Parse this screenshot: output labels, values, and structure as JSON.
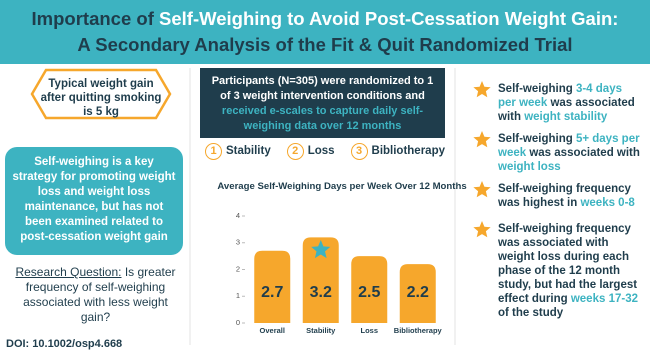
{
  "header": {
    "title_segments": [
      "Importance of",
      "Self-Weighing to Avoid",
      "Post-Cessation Weight Gain:"
    ],
    "subtitle": "A Secondary Analysis of the Fit & Quit Randomized Trial"
  },
  "left": {
    "callout": "Typical weight gain after quitting smoking is 5 kg",
    "background": "Self-weighing is a key strategy for promoting weight loss and weight loss maintenance, but has not been examined related to post-cessation weight gain",
    "question_label": "Research Question:",
    "question": "Is greater frequency of self-weighing associated with less weight gain?",
    "doi": "DOI: 10.1002/osp4.668"
  },
  "middle": {
    "segments": [
      "Participants (N=305) were randomized to 1 of 3 weight intervention conditions and",
      "received e-scales to capture daily self-weighing data over 12 months"
    ],
    "conditions": [
      {
        "number": "1",
        "label": "Stability"
      },
      {
        "number": "2",
        "label": "Loss"
      },
      {
        "number": "3",
        "label": "Bibliotherapy"
      }
    ]
  },
  "chart_data": {
    "type": "bar",
    "title": "Average Self-Weighing Days per Week Over 12 Months",
    "categories": [
      "Overall",
      "Stability",
      "Loss",
      "Bibliotherapy"
    ],
    "values": [
      2.7,
      3.2,
      2.5,
      2.2
    ],
    "color": "#f6a72c",
    "ylim": [
      0,
      4
    ],
    "yticks": [
      0,
      1,
      2,
      3,
      4
    ]
  },
  "findings": [
    [
      "Self-weighing",
      "3-4 days per week",
      "was associated with",
      "weight stability"
    ],
    [
      "Self-weighing",
      "5+ days per week",
      "was associated with",
      "weight loss"
    ],
    [
      "Self-weighing frequency was highest in",
      "weeks 0-8"
    ],
    [
      "Self-weighing frequency was associated with weight loss during each phase of the 12 month study, but had the largest effect during",
      "weeks 17-32",
      "of the study"
    ]
  ]
}
